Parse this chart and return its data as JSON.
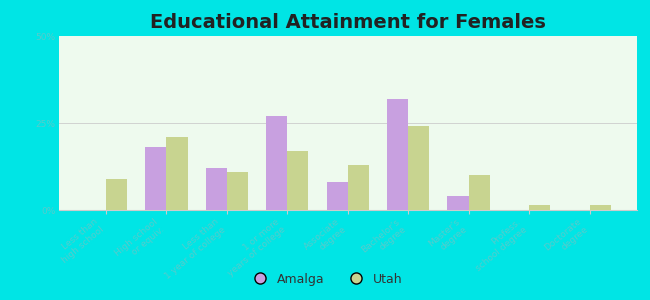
{
  "title": "Educational Attainment for Females",
  "categories": [
    "Less than\nhigh school",
    "High school\nor equiv.",
    "Less than\n1 year of college",
    "1 or more\nyears of college",
    "Associate\ndegree",
    "Bachelor's\ndegree",
    "Master's\ndegree",
    "Profess.\nschool degree",
    "Doctorate\ndegree"
  ],
  "amalga_values": [
    0.0,
    18.0,
    12.0,
    27.0,
    8.0,
    32.0,
    4.0,
    0.0,
    0.0
  ],
  "utah_values": [
    9.0,
    21.0,
    11.0,
    17.0,
    13.0,
    24.0,
    10.0,
    1.5,
    1.5
  ],
  "amalga_color": "#c8a0e0",
  "utah_color": "#c8d490",
  "bg_color": "#00e5e5",
  "plot_bg": "#eefaee",
  "ylim": [
    0,
    50
  ],
  "yticks": [
    0,
    25,
    50
  ],
  "ytick_labels": [
    "0%",
    "25%",
    "50%"
  ],
  "title_fontsize": 14,
  "tick_fontsize": 6.5,
  "legend_fontsize": 9,
  "bar_width": 0.35,
  "tick_color": "#55cccc",
  "grid_color": "#cccccc"
}
